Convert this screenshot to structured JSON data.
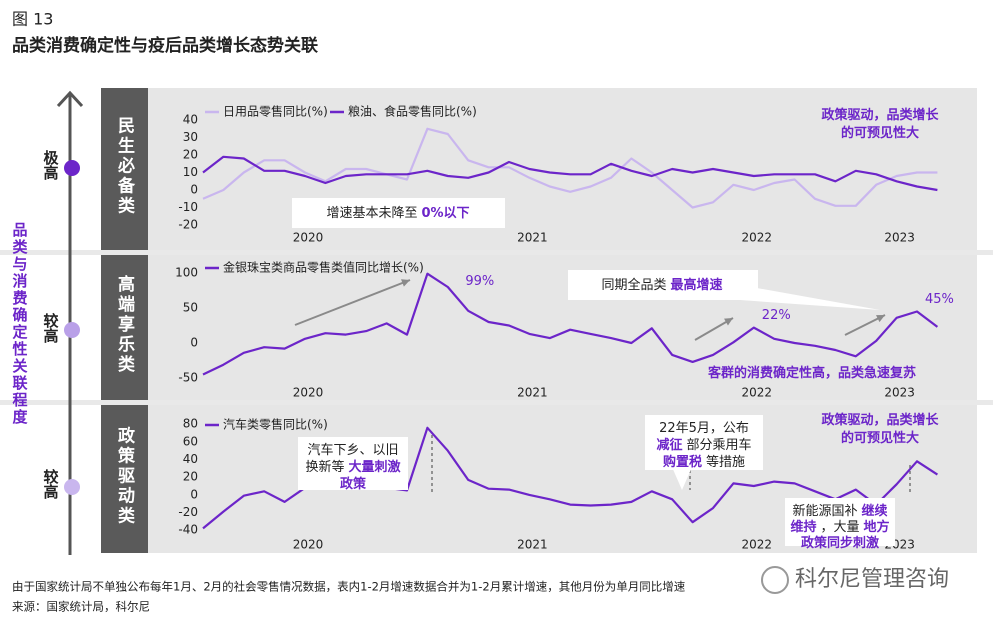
{
  "figure_label": "图 13",
  "title": "品类消费确定性与疫后品类增长态势关联",
  "side_axis": {
    "label": "品类与消费确定性关联程度",
    "levels": [
      "极高",
      "较高",
      "较高"
    ]
  },
  "chart_data": [
    {
      "type": "line",
      "panel_label": "民生必备类",
      "categories": [
        null,
        null,
        null,
        null,
        null,
        "2020",
        null,
        null,
        null,
        null,
        null,
        null,
        null,
        null,
        null,
        null,
        "2021",
        null,
        null,
        null,
        null,
        null,
        null,
        null,
        null,
        null,
        null,
        "2022",
        null,
        null,
        null,
        null,
        null,
        null,
        "2023",
        null,
        null
      ],
      "series": [
        {
          "name": "日用品零售同比(%)",
          "color": "#c9b6ee",
          "values": [
            -5,
            0,
            10,
            17,
            17,
            10,
            5,
            12,
            12,
            9,
            6,
            35,
            32,
            17,
            13,
            13,
            7,
            2,
            -1,
            2,
            7,
            18,
            10,
            0,
            -10,
            -7,
            3,
            0,
            4,
            6,
            -5,
            -9,
            -9,
            3,
            8,
            10,
            10
          ]
        },
        {
          "name": "粮油、食品零售同比(%)",
          "color": "#6c25c9",
          "values": [
            10,
            19,
            18,
            11,
            11,
            8,
            4,
            8,
            9,
            9,
            9,
            11,
            8,
            7,
            10,
            16,
            12,
            10,
            9,
            9,
            15,
            11,
            8,
            12,
            10,
            12,
            10,
            8,
            9,
            9,
            9,
            5,
            11,
            9,
            5,
            2,
            0
          ]
        }
      ],
      "ylim": [
        -30,
        50
      ],
      "yticks": [
        -20,
        -10,
        0,
        10,
        20,
        30,
        40
      ],
      "annotations": [
        {
          "lines": [
            [
              {
                "text": "政策驱动，品类增长",
                "emphasis": true
              }
            ],
            [
              {
                "text": "的可预见性大",
                "emphasis": true
              }
            ]
          ]
        },
        {
          "lines": [
            [
              {
                "text": "增速基本未降至",
                "emphasis": false
              },
              {
                "text": "0%以下",
                "emphasis": true
              }
            ]
          ]
        }
      ]
    },
    {
      "type": "line",
      "panel_label": "高端享乐类",
      "categories": [
        null,
        null,
        null,
        null,
        null,
        "2020",
        null,
        null,
        null,
        null,
        null,
        null,
        null,
        null,
        null,
        null,
        "2021",
        null,
        null,
        null,
        null,
        null,
        null,
        null,
        null,
        null,
        null,
        "2022",
        null,
        null,
        null,
        null,
        null,
        null,
        "2023",
        null,
        null
      ],
      "series": [
        {
          "name": "金银珠宝类商品零售类值同比增长(%)",
          "color": "#6c25c9",
          "values": [
            -45,
            -31,
            -14,
            -6,
            -8,
            6,
            14,
            12,
            17,
            28,
            12,
            99,
            80,
            46,
            30,
            25,
            13,
            7,
            19,
            13,
            7,
            0,
            21,
            -17,
            -27,
            -17,
            1,
            22,
            6,
            0,
            -4,
            -10,
            -19,
            3,
            36,
            45,
            23
          ],
          "value_labels": [
            null,
            null,
            null,
            null,
            null,
            null,
            null,
            null,
            null,
            null,
            null,
            "99%",
            null,
            null,
            null,
            null,
            null,
            null,
            null,
            null,
            null,
            null,
            null,
            null,
            null,
            null,
            null,
            "22%",
            null,
            null,
            null,
            null,
            null,
            null,
            null,
            "45%",
            null
          ]
        }
      ],
      "ylim": [
        -60,
        120
      ],
      "yticks": [
        -50,
        0,
        50,
        100
      ],
      "annotations": [
        {
          "lines": [
            [
              {
                "text": "同期全品类",
                "emphasis": false
              },
              {
                "text": "最高增速",
                "emphasis": true
              }
            ]
          ]
        },
        {
          "lines": [
            [
              {
                "text": "客群的消费确定性高，品类急速复苏",
                "emphasis": true
              }
            ]
          ]
        }
      ]
    },
    {
      "type": "line",
      "panel_label": "政策驱动类",
      "categories": [
        null,
        null,
        null,
        null,
        null,
        "2020",
        null,
        null,
        null,
        null,
        null,
        null,
        null,
        null,
        null,
        null,
        "2021",
        null,
        null,
        null,
        null,
        null,
        null,
        null,
        null,
        null,
        null,
        "2022",
        null,
        null,
        null,
        null,
        null,
        null,
        "2023",
        null,
        null
      ],
      "series": [
        {
          "name": "汽车类零售同比(%)",
          "color": "#6c25c9",
          "values": [
            -38,
            -19,
            -1,
            4,
            -8,
            8,
            10,
            12,
            10,
            8,
            5,
            76,
            50,
            17,
            7,
            6,
            0,
            -5,
            -11,
            -12,
            -11,
            -8,
            4,
            -5,
            -31,
            -15,
            13,
            10,
            15,
            13,
            4,
            -5,
            6,
            -11,
            12,
            38,
            23
          ]
        }
      ],
      "ylim": [
        -50,
        95
      ],
      "yticks": [
        -40,
        -20,
        0,
        20,
        40,
        60,
        80
      ],
      "annotations": [
        {
          "lines": [
            [
              {
                "text": "政策驱动，品类增长",
                "emphasis": true
              }
            ],
            [
              {
                "text": "的可预见性大",
                "emphasis": true
              }
            ]
          ]
        },
        {
          "lines": [
            [
              {
                "text": "汽车下乡、以旧",
                "emphasis": false
              }
            ],
            [
              {
                "text": "换新等",
                "emphasis": false
              },
              {
                "text": "大量刺激",
                "emphasis": true
              }
            ],
            [
              {
                "text": "政策",
                "emphasis": true
              }
            ]
          ]
        },
        {
          "lines": [
            [
              {
                "text": "22年5月，公布",
                "emphasis": false
              }
            ],
            [
              {
                "text": "减征",
                "emphasis": true
              },
              {
                "text": "部分乘用车",
                "emphasis": false
              }
            ],
            [
              {
                "text": "购置税",
                "emphasis": true
              },
              {
                "text": "等措施",
                "emphasis": false
              }
            ]
          ]
        },
        {
          "lines": [
            [
              {
                "text": "新能源国补",
                "emphasis": false
              },
              {
                "text": "继续",
                "emphasis": true
              }
            ],
            [
              {
                "text": "维持",
                "emphasis": true
              },
              {
                "text": "，大量",
                "emphasis": false
              },
              {
                "text": "地方",
                "emphasis": true
              }
            ],
            [
              {
                "text": "政策同步刺激",
                "emphasis": true
              }
            ]
          ]
        }
      ]
    }
  ],
  "footnote": "由于国家统计局不单独公布每年1月、2月的社会零售情况数据，表内1-2月增速数据合并为1-2月累计增速，其他月份为单月同比增速",
  "source": "来源：国家统计局，科尔尼",
  "watermark": "科尔尼管理咨询"
}
